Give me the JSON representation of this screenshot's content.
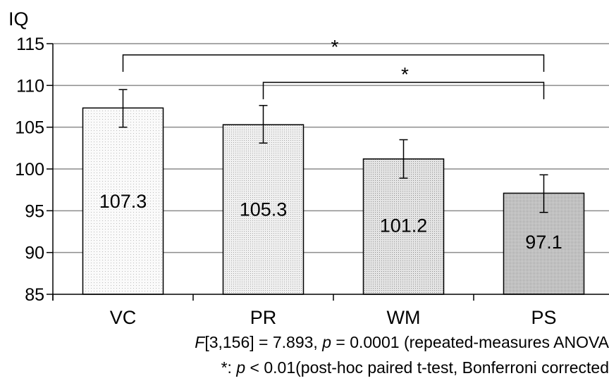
{
  "chart_data": {
    "type": "bar",
    "ylabel": "IQ",
    "xlabel": "",
    "ylim": [
      85,
      115
    ],
    "yticks": [
      "85",
      "90",
      "95",
      "100",
      "105",
      "110",
      "115"
    ],
    "grid": true,
    "categories": [
      "VC",
      "PR",
      "WM",
      "PS"
    ],
    "values": [
      107.3,
      105.3,
      101.2,
      97.1
    ],
    "value_labels": [
      "107.3",
      "105.3",
      "101.2",
      "97.1"
    ],
    "error_upper": [
      109.5,
      107.6,
      103.5,
      99.3
    ],
    "error_lower": [
      105.0,
      103.1,
      98.9,
      94.8
    ],
    "bar_fill_colors": [
      "#f8f8f8",
      "#ececec",
      "#dcdcdc",
      "#bcbcbc"
    ],
    "significance": [
      {
        "from": "VC",
        "to": "PS",
        "label": "*"
      },
      {
        "from": "PR",
        "to": "PS",
        "label": "*"
      }
    ]
  },
  "footnotes": {
    "line1_f": "F",
    "line1_rest": "[3,156] = 7.893, ",
    "line1_p": "p",
    "line1_tail": " = 0.0001 (repeated-measures ANOVA",
    "line2_head": "*: ",
    "line2_p": "p",
    "line2_tail": " < 0.01(post-hoc paired t-test, Bonferroni corrected"
  }
}
